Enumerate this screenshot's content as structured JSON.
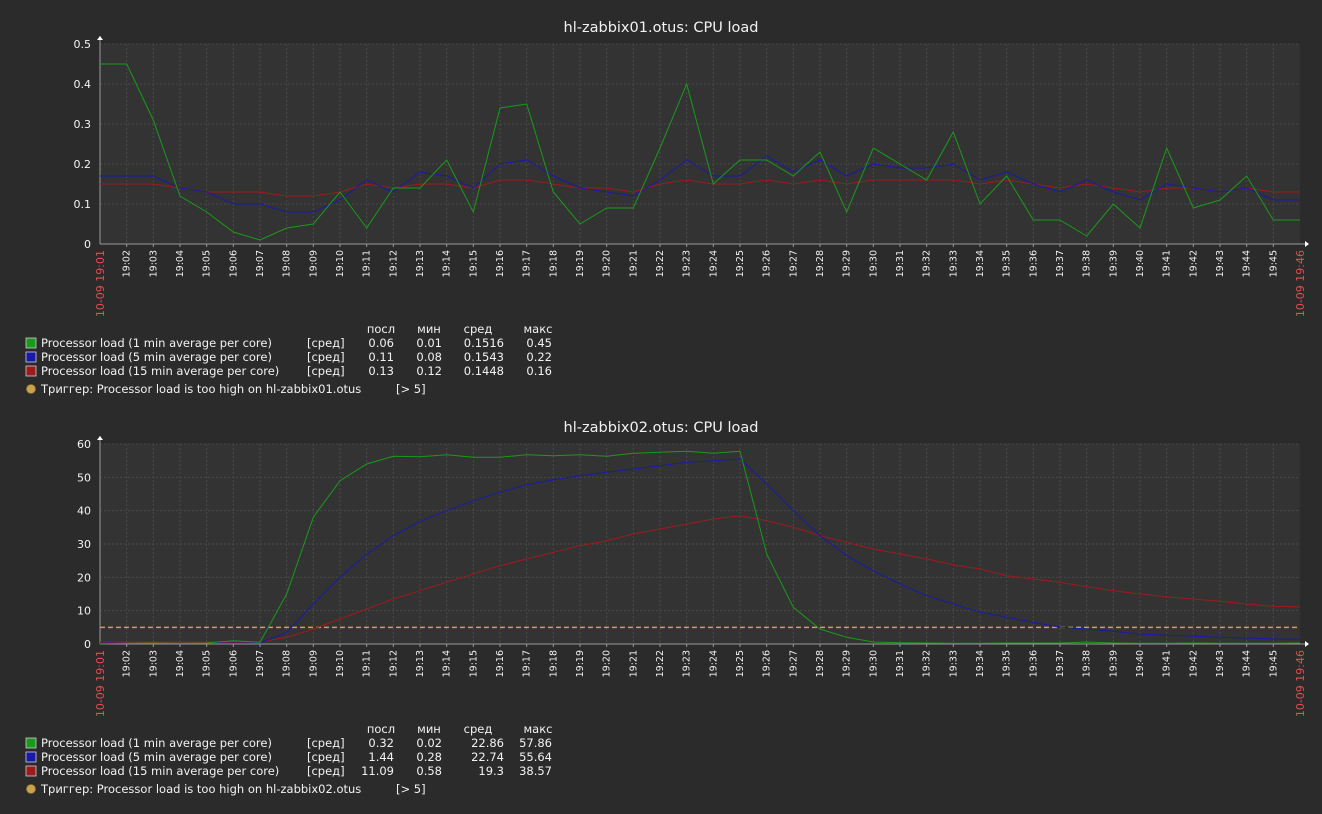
{
  "colors": {
    "background": "#2b2b2b",
    "plot_bg": "#333333",
    "grid": "#4a4a4a",
    "text": "#f2f2f2",
    "time_label": "#e05050",
    "trigger": "#c8a44f",
    "series_1min": "#1a9a1a",
    "series_5min": "#1a1aa8",
    "series_15min": "#a01a1a"
  },
  "time_labels": [
    "19:02",
    "19:03",
    "19:04",
    "19:05",
    "19:06",
    "19:07",
    "19:08",
    "19:09",
    "19:10",
    "19:11",
    "19:12",
    "19:13",
    "19:14",
    "19:15",
    "19:16",
    "19:17",
    "19:18",
    "19:19",
    "19:20",
    "19:21",
    "19:22",
    "19:23",
    "19:24",
    "19:25",
    "19:26",
    "19:27",
    "19:28",
    "19:29",
    "19:30",
    "19:31",
    "19:32",
    "19:33",
    "19:34",
    "19:35",
    "19:36",
    "19:37",
    "19:38",
    "19:39",
    "19:40",
    "19:41",
    "19:42",
    "19:43",
    "19:44",
    "19:45"
  ],
  "time_start": "10-09 19:01",
  "time_end": "10-09 19:46",
  "legend_headers": [
    "посл",
    "мин",
    "сред",
    "макс"
  ],
  "legend_mode": "[сред]",
  "chart_data": [
    {
      "type": "line",
      "title": "hl-zabbix01.otus: CPU load",
      "ylim": [
        0,
        0.5
      ],
      "y_ticks": [
        "0",
        "0.1",
        "0.2",
        "0.3",
        "0.4",
        "0.5"
      ],
      "series": [
        {
          "name": "Processor load (1 min average per core)",
          "color_key": "series_1min",
          "last": "0.06",
          "min": "0.01",
          "avg": "0.1516",
          "max": "0.45",
          "values": [
            0.45,
            0.45,
            0.31,
            0.12,
            0.08,
            0.03,
            0.01,
            0.04,
            0.05,
            0.13,
            0.04,
            0.14,
            0.14,
            0.21,
            0.08,
            0.34,
            0.35,
            0.13,
            0.05,
            0.09,
            0.09,
            0.24,
            0.4,
            0.15,
            0.21,
            0.21,
            0.17,
            0.23,
            0.08,
            0.24,
            0.2,
            0.16,
            0.28,
            0.1,
            0.17,
            0.06,
            0.06,
            0.02,
            0.1,
            0.04,
            0.24,
            0.09,
            0.11,
            0.17,
            0.06,
            0.06
          ]
        },
        {
          "name": "Processor load (5 min average per core)",
          "color_key": "series_5min",
          "last": "0.11",
          "min": "0.08",
          "avg": "0.1543",
          "max": "0.22",
          "values": [
            0.17,
            0.17,
            0.17,
            0.14,
            0.13,
            0.1,
            0.1,
            0.08,
            0.08,
            0.11,
            0.16,
            0.13,
            0.18,
            0.17,
            0.14,
            0.2,
            0.21,
            0.17,
            0.14,
            0.13,
            0.12,
            0.16,
            0.21,
            0.17,
            0.17,
            0.22,
            0.18,
            0.21,
            0.17,
            0.2,
            0.19,
            0.19,
            0.2,
            0.16,
            0.18,
            0.15,
            0.13,
            0.16,
            0.13,
            0.11,
            0.15,
            0.14,
            0.13,
            0.14,
            0.11,
            0.11
          ]
        },
        {
          "name": "Processor load (15 min average per core)",
          "color_key": "series_15min",
          "last": "0.13",
          "min": "0.12",
          "avg": "0.1448",
          "max": "0.16",
          "values": [
            0.15,
            0.15,
            0.15,
            0.14,
            0.13,
            0.13,
            0.13,
            0.12,
            0.12,
            0.13,
            0.15,
            0.14,
            0.15,
            0.15,
            0.14,
            0.16,
            0.16,
            0.15,
            0.14,
            0.14,
            0.13,
            0.15,
            0.16,
            0.15,
            0.15,
            0.16,
            0.15,
            0.16,
            0.15,
            0.16,
            0.16,
            0.16,
            0.16,
            0.15,
            0.16,
            0.15,
            0.14,
            0.15,
            0.14,
            0.13,
            0.14,
            0.14,
            0.13,
            0.14,
            0.13,
            0.13
          ]
        }
      ],
      "trigger": {
        "label": "Триггер: Processor load is too high on hl-zabbix01.otus",
        "condition": "[> 5]",
        "value": 5
      }
    },
    {
      "type": "line",
      "title": "hl-zabbix02.otus: CPU load",
      "ylim": [
        0,
        60
      ],
      "y_ticks": [
        "0",
        "10",
        "20",
        "30",
        "40",
        "50",
        "60"
      ],
      "series": [
        {
          "name": "Processor load (1 min average per core)",
          "color_key": "series_1min",
          "last": "0.32",
          "min": "0.02",
          "avg": "22.86",
          "max": "57.86",
          "values": [
            0.1,
            0.2,
            0.3,
            0.2,
            0.3,
            1.0,
            0.5,
            15,
            38,
            49,
            54,
            56.3,
            56.2,
            56.8,
            56,
            56,
            56.8,
            56.5,
            56.8,
            56.3,
            57.2,
            57.5,
            57.8,
            57.2,
            57.8,
            27,
            11,
            4.5,
            2,
            0.6,
            0.4,
            0.3,
            0.2,
            0.2,
            0.3,
            0.3,
            0.3,
            0.6,
            0.3,
            0.2,
            0.2,
            0.3,
            0.2,
            0.2,
            0.2,
            0.3
          ]
        },
        {
          "name": "Processor load (5 min average per core)",
          "color_key": "series_5min",
          "last": "1.44",
          "min": "0.28",
          "avg": "22.74",
          "max": "55.64",
          "values": [
            0.3,
            0.3,
            0.3,
            0.3,
            0.3,
            0.3,
            0.3,
            3.5,
            12,
            20,
            27,
            32.5,
            36.8,
            40,
            43,
            45.5,
            47.8,
            49.3,
            50.5,
            51.5,
            52.5,
            53.5,
            54.5,
            55,
            55.5,
            48,
            40,
            32.5,
            26.5,
            22,
            18,
            14.5,
            12,
            9.5,
            8,
            6.5,
            5,
            4.5,
            3.8,
            3,
            2.6,
            2.3,
            2,
            1.8,
            1.5,
            1.44
          ]
        },
        {
          "name": "Processor load (15 min average per core)",
          "color_key": "series_15min",
          "last": "11.09",
          "min": "0.58",
          "avg": "19.3",
          "max": "38.57",
          "values": [
            0.6,
            0.6,
            0.6,
            0.6,
            0.6,
            0.6,
            0.6,
            2,
            4.5,
            7.5,
            10.5,
            13.5,
            16,
            18.5,
            21,
            23.5,
            25.5,
            27.5,
            29.5,
            31,
            33,
            34.5,
            36,
            37.5,
            38.5,
            37,
            35,
            32.5,
            30.5,
            28.5,
            27,
            25.5,
            23.8,
            22.5,
            20.5,
            19.5,
            18.5,
            17.2,
            16,
            15,
            14.2,
            13.5,
            12.8,
            12,
            11.3,
            11.09
          ]
        }
      ],
      "trigger": {
        "label": "Триггер: Processor load is too high on hl-zabbix02.otus",
        "condition": "[> 5]",
        "value": 5
      }
    }
  ]
}
